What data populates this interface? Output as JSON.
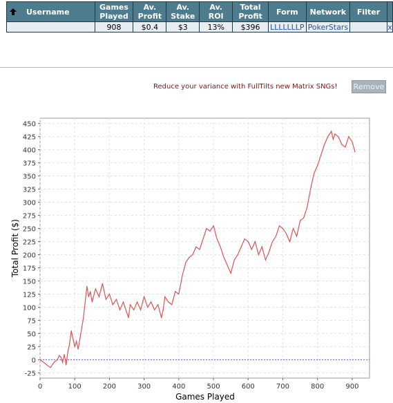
{
  "table": {
    "headers": {
      "username": "Username",
      "games_played": "Games Played",
      "av_profit": "Av. Profit",
      "av_stake": "Av. Stake",
      "av_roi": "Av. ROI",
      "total_profit": "Total Profit",
      "form": "Form",
      "network": "Network",
      "filter": "Filter"
    },
    "row": {
      "username": "",
      "games_played": "908",
      "av_profit": "$0.4",
      "av_stake": "$3",
      "av_roi": "13%",
      "total_profit": "$396",
      "form": "LLLLLLLP",
      "network": "PokerStars",
      "filter": "",
      "remove_x": "x"
    }
  },
  "promo_text": "Reduce your variance with FullTilts new Matrix SNGs!",
  "remove_button": "Remove",
  "colors": {
    "header_bg": "#4d7c8e",
    "line": "#e05050",
    "zero_line": "#5a5ad0",
    "promo": "#8a1010"
  },
  "chart_data": {
    "type": "line",
    "title": "",
    "xlabel": "Games Played",
    "ylabel": "Total Profit ($)",
    "xlim": [
      0,
      950
    ],
    "ylim": [
      -35,
      460
    ],
    "xticks": [
      0,
      100,
      200,
      300,
      400,
      500,
      600,
      700,
      800,
      900
    ],
    "yticks": [
      -25,
      0,
      25,
      50,
      75,
      100,
      125,
      150,
      175,
      200,
      225,
      250,
      275,
      300,
      325,
      350,
      375,
      400,
      425,
      450
    ],
    "grid": true,
    "reference_line": 0,
    "series": [
      {
        "x": [
          0,
          10,
          20,
          30,
          40,
          50,
          55,
          60,
          65,
          70,
          75,
          80,
          85,
          90,
          95,
          100,
          105,
          110,
          115,
          120,
          125,
          130,
          135,
          140,
          145,
          150,
          160,
          170,
          180,
          190,
          200,
          210,
          220,
          230,
          240,
          250,
          255,
          260,
          270,
          280,
          290,
          300,
          310,
          320,
          330,
          340,
          350,
          355,
          360,
          370,
          380,
          390,
          400,
          410,
          420,
          430,
          440,
          450,
          460,
          470,
          480,
          490,
          500,
          510,
          520,
          530,
          540,
          550,
          560,
          570,
          580,
          590,
          600,
          610,
          620,
          630,
          640,
          650,
          660,
          670,
          680,
          690,
          700,
          710,
          720,
          730,
          740,
          750,
          760,
          770,
          780,
          790,
          800,
          810,
          820,
          830,
          840,
          845,
          850,
          860,
          870,
          880,
          890,
          900,
          908
        ],
        "y": [
          0,
          -5,
          -10,
          -15,
          -5,
          0,
          8,
          5,
          -5,
          10,
          -10,
          15,
          30,
          55,
          40,
          25,
          35,
          20,
          40,
          60,
          80,
          110,
          140,
          120,
          130,
          110,
          135,
          120,
          145,
          115,
          125,
          105,
          115,
          95,
          110,
          90,
          80,
          105,
          95,
          110,
          95,
          120,
          100,
          110,
          95,
          105,
          80,
          95,
          120,
          110,
          105,
          130,
          125,
          160,
          185,
          195,
          200,
          215,
          210,
          230,
          250,
          245,
          255,
          230,
          215,
          195,
          180,
          165,
          190,
          200,
          215,
          230,
          225,
          210,
          225,
          200,
          215,
          190,
          205,
          225,
          235,
          255,
          250,
          240,
          225,
          250,
          235,
          265,
          270,
          290,
          325,
          355,
          370,
          390,
          410,
          425,
          435,
          420,
          430,
          425,
          410,
          405,
          425,
          415,
          396
        ]
      }
    ]
  }
}
